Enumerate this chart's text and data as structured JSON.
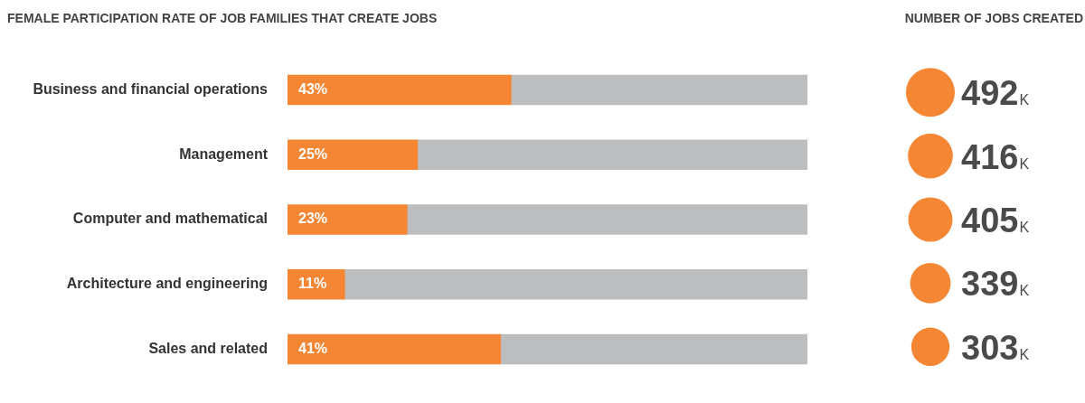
{
  "chart_data": [
    {
      "type": "bar",
      "orientation": "horizontal",
      "stacked": true,
      "title": "FEMALE PARTICIPATION RATE OF JOB FAMILIES THAT CREATE JOBS",
      "categories": [
        "Business and financial operations",
        "Management",
        "Computer and mathematical",
        "Architecture and engineering",
        "Sales and related"
      ],
      "series": [
        {
          "color": "#f58634",
          "values": [
            43,
            25,
            23,
            11,
            41
          ],
          "value_labels": [
            "43%",
            "25%",
            "23%",
            "11%",
            "41%"
          ]
        },
        {
          "color": "#bcbdbf",
          "values": [
            57,
            75,
            77,
            89,
            59
          ]
        }
      ]
    },
    {
      "type": "other",
      "title": "NUMBER OF JOBS CREATED",
      "categories": [
        null,
        null,
        null,
        null,
        null
      ],
      "values": [
        492,
        416,
        405,
        339,
        303
      ],
      "color": "#f58634",
      "value_labels": [
        "492K",
        "416K",
        "405K",
        "339K",
        "303K"
      ]
    }
  ]
}
